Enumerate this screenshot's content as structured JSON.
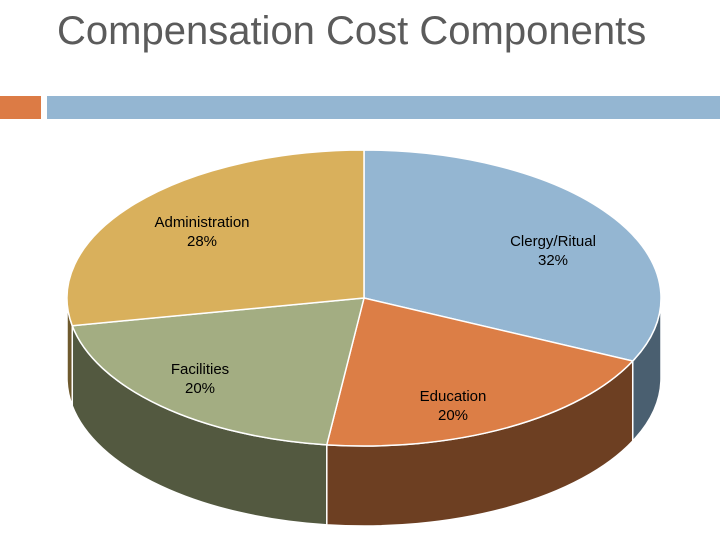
{
  "slide": {
    "title": "Compensation Cost Components"
  },
  "chart_data": {
    "type": "pie",
    "title": "",
    "three_d": true,
    "legend": "none",
    "slices": [
      {
        "label": "Clergy/Ritual",
        "value": 32,
        "percent_label": "32%",
        "color": "#94b6d2",
        "side_color": "#4a5f70"
      },
      {
        "label": "Education",
        "value": 20,
        "percent_label": "20%",
        "color": "#dc7e46",
        "side_color": "#6d3f22"
      },
      {
        "label": "Facilities",
        "value": 20,
        "percent_label": "20%",
        "color": "#a3ad82",
        "side_color": "#535940"
      },
      {
        "label": "Administration",
        "value": 28,
        "percent_label": "28%",
        "color": "#d9b05c",
        "side_color": "#6e5a2e"
      }
    ]
  },
  "colors": {
    "title": "#5b5b5b",
    "accent_orange": "#dc7b45",
    "accent_blue": "#94b6d2"
  }
}
